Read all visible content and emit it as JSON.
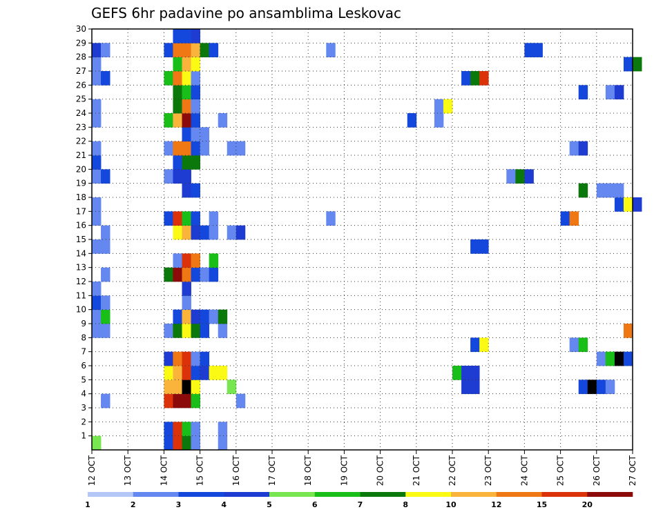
{
  "chart_data": {
    "type": "heatmap",
    "title": "GEFS 6hr padavine po ansamblima Leskovac",
    "x_ticks": [
      "12 OCT",
      "13 OCT",
      "14 OCT",
      "15 OCT",
      "16 OCT",
      "17 OCT",
      "18 OCT",
      "19 OCT",
      "20 OCT",
      "21 OCT",
      "22 OCT",
      "23 OCT",
      "24 OCT",
      "25 OCT",
      "26 OCT",
      "27 OCT"
    ],
    "y_ticks": [
      1,
      2,
      3,
      4,
      5,
      6,
      7,
      8,
      9,
      10,
      11,
      12,
      13,
      14,
      15,
      16,
      17,
      18,
      19,
      20,
      21,
      22,
      23,
      24,
      25,
      26,
      27,
      28,
      29,
      30
    ],
    "ylim": [
      0,
      30
    ],
    "x_steps_per_day": 4,
    "grid": true,
    "colorbar": {
      "labels": [
        "1",
        "2",
        "3",
        "4",
        "5",
        "6",
        "7",
        "8",
        "10",
        "12",
        "15",
        "20"
      ],
      "colors": [
        "#b4c8f8",
        "#6488f0",
        "#1448dc",
        "#1e3cd2",
        "#78e650",
        "#19be19",
        "#0a780a",
        "#fafa14",
        "#fab43c",
        "#f07814",
        "#dc320a",
        "#8c0a0a"
      ]
    },
    "cells": [
      [
        0,
        0,
        4
      ],
      [
        8,
        0,
        2
      ],
      [
        9,
        0,
        10
      ],
      [
        10,
        0,
        6
      ],
      [
        11,
        0,
        1
      ],
      [
        14,
        0,
        1
      ],
      [
        8,
        1,
        2
      ],
      [
        9,
        1,
        10
      ],
      [
        10,
        1,
        5
      ],
      [
        11,
        1,
        1
      ],
      [
        14,
        1,
        1
      ],
      [
        1,
        3,
        1
      ],
      [
        8,
        3,
        10
      ],
      [
        9,
        3,
        11
      ],
      [
        10,
        3,
        11
      ],
      [
        11,
        3,
        5
      ],
      [
        16,
        3,
        1
      ],
      [
        8,
        4,
        8
      ],
      [
        9,
        4,
        8
      ],
      [
        10,
        4,
        12
      ],
      [
        11,
        4,
        7
      ],
      [
        15,
        4,
        4
      ],
      [
        41,
        4,
        3
      ],
      [
        42,
        4,
        3
      ],
      [
        54,
        4,
        2
      ],
      [
        55,
        4,
        12
      ],
      [
        56,
        4,
        2
      ],
      [
        57,
        4,
        1
      ],
      [
        8,
        5,
        7
      ],
      [
        9,
        5,
        8
      ],
      [
        10,
        5,
        10
      ],
      [
        11,
        5,
        2
      ],
      [
        12,
        5,
        3
      ],
      [
        13,
        5,
        7
      ],
      [
        14,
        5,
        7
      ],
      [
        40,
        5,
        5
      ],
      [
        41,
        5,
        3
      ],
      [
        42,
        5,
        3
      ],
      [
        8,
        6,
        3
      ],
      [
        9,
        6,
        9
      ],
      [
        10,
        6,
        10
      ],
      [
        11,
        6,
        1
      ],
      [
        12,
        6,
        2
      ],
      [
        56,
        6,
        1
      ],
      [
        57,
        6,
        5
      ],
      [
        58,
        6,
        12
      ],
      [
        59,
        6,
        2
      ],
      [
        42,
        7,
        2
      ],
      [
        43,
        7,
        7
      ],
      [
        53,
        7,
        1
      ],
      [
        54,
        7,
        5
      ],
      [
        0,
        8,
        1
      ],
      [
        1,
        8,
        1
      ],
      [
        8,
        8,
        1
      ],
      [
        9,
        8,
        6
      ],
      [
        10,
        8,
        7
      ],
      [
        11,
        8,
        6
      ],
      [
        12,
        8,
        2
      ],
      [
        14,
        8,
        1
      ],
      [
        59,
        8,
        9
      ],
      [
        0,
        9,
        1
      ],
      [
        1,
        9,
        5
      ],
      [
        9,
        9,
        2
      ],
      [
        10,
        9,
        8
      ],
      [
        11,
        9,
        3
      ],
      [
        12,
        9,
        2
      ],
      [
        13,
        9,
        1
      ],
      [
        14,
        9,
        6
      ],
      [
        0,
        10,
        2
      ],
      [
        1,
        10,
        1
      ],
      [
        10,
        10,
        1
      ],
      [
        0,
        11,
        1
      ],
      [
        10,
        11,
        3
      ],
      [
        1,
        12,
        1
      ],
      [
        8,
        12,
        6
      ],
      [
        9,
        12,
        11
      ],
      [
        10,
        12,
        9
      ],
      [
        11,
        12,
        2
      ],
      [
        12,
        12,
        1
      ],
      [
        13,
        12,
        2
      ],
      [
        9,
        13,
        1
      ],
      [
        10,
        13,
        10
      ],
      [
        11,
        13,
        9
      ],
      [
        13,
        13,
        5
      ],
      [
        0,
        14,
        1
      ],
      [
        1,
        14,
        1
      ],
      [
        42,
        14,
        2
      ],
      [
        43,
        14,
        2
      ],
      [
        1,
        15,
        1
      ],
      [
        9,
        15,
        7
      ],
      [
        10,
        15,
        8
      ],
      [
        11,
        15,
        3
      ],
      [
        12,
        15,
        2
      ],
      [
        13,
        15,
        1
      ],
      [
        15,
        15,
        1
      ],
      [
        16,
        15,
        3
      ],
      [
        0,
        16,
        1
      ],
      [
        8,
        16,
        2
      ],
      [
        9,
        16,
        10
      ],
      [
        10,
        16,
        5
      ],
      [
        11,
        16,
        2
      ],
      [
        13,
        16,
        1
      ],
      [
        26,
        16,
        1
      ],
      [
        52,
        16,
        2
      ],
      [
        53,
        16,
        9
      ],
      [
        0,
        17,
        1
      ],
      [
        58,
        17,
        2
      ],
      [
        59,
        17,
        7
      ],
      [
        60,
        17,
        3
      ],
      [
        10,
        18,
        3
      ],
      [
        11,
        18,
        2
      ],
      [
        54,
        18,
        6
      ],
      [
        56,
        18,
        1
      ],
      [
        57,
        18,
        1
      ],
      [
        58,
        18,
        1
      ],
      [
        0,
        19,
        1
      ],
      [
        1,
        19,
        2
      ],
      [
        8,
        19,
        1
      ],
      [
        9,
        19,
        3
      ],
      [
        10,
        19,
        3
      ],
      [
        46,
        19,
        1
      ],
      [
        47,
        19,
        6
      ],
      [
        48,
        19,
        3
      ],
      [
        0,
        20,
        2
      ],
      [
        9,
        20,
        2
      ],
      [
        10,
        20,
        6
      ],
      [
        11,
        20,
        6
      ],
      [
        0,
        21,
        1
      ],
      [
        8,
        21,
        1
      ],
      [
        9,
        21,
        9
      ],
      [
        10,
        21,
        9
      ],
      [
        11,
        21,
        2
      ],
      [
        12,
        21,
        1
      ],
      [
        15,
        21,
        1
      ],
      [
        16,
        21,
        1
      ],
      [
        53,
        21,
        1
      ],
      [
        54,
        21,
        3
      ],
      [
        10,
        22,
        2
      ],
      [
        11,
        22,
        1
      ],
      [
        12,
        22,
        1
      ],
      [
        0,
        23,
        1
      ],
      [
        8,
        23,
        5
      ],
      [
        9,
        23,
        8
      ],
      [
        10,
        23,
        11
      ],
      [
        11,
        23,
        2
      ],
      [
        14,
        23,
        1
      ],
      [
        35,
        23,
        2
      ],
      [
        38,
        23,
        1
      ],
      [
        0,
        24,
        1
      ],
      [
        9,
        24,
        6
      ],
      [
        10,
        24,
        9
      ],
      [
        11,
        24,
        1
      ],
      [
        38,
        24,
        1
      ],
      [
        39,
        24,
        7
      ],
      [
        9,
        25,
        6
      ],
      [
        10,
        25,
        5
      ],
      [
        11,
        25,
        2
      ],
      [
        54,
        25,
        2
      ],
      [
        57,
        25,
        1
      ],
      [
        58,
        25,
        3
      ],
      [
        0,
        26,
        1
      ],
      [
        1,
        26,
        2
      ],
      [
        8,
        26,
        5
      ],
      [
        9,
        26,
        9
      ],
      [
        10,
        26,
        7
      ],
      [
        11,
        26,
        1
      ],
      [
        41,
        26,
        2
      ],
      [
        42,
        26,
        6
      ],
      [
        43,
        26,
        10
      ],
      [
        0,
        27,
        1
      ],
      [
        9,
        27,
        5
      ],
      [
        10,
        27,
        8
      ],
      [
        11,
        27,
        7
      ],
      [
        59,
        27,
        2
      ],
      [
        60,
        27,
        6
      ],
      [
        0,
        28,
        3
      ],
      [
        1,
        28,
        1
      ],
      [
        8,
        28,
        2
      ],
      [
        9,
        28,
        9
      ],
      [
        10,
        28,
        9
      ],
      [
        11,
        28,
        8
      ],
      [
        12,
        28,
        6
      ],
      [
        13,
        28,
        2
      ],
      [
        26,
        28,
        1
      ],
      [
        48,
        28,
        2
      ],
      [
        49,
        28,
        2
      ],
      [
        9,
        29,
        2
      ],
      [
        10,
        29,
        2
      ],
      [
        11,
        29,
        3
      ]
    ]
  }
}
